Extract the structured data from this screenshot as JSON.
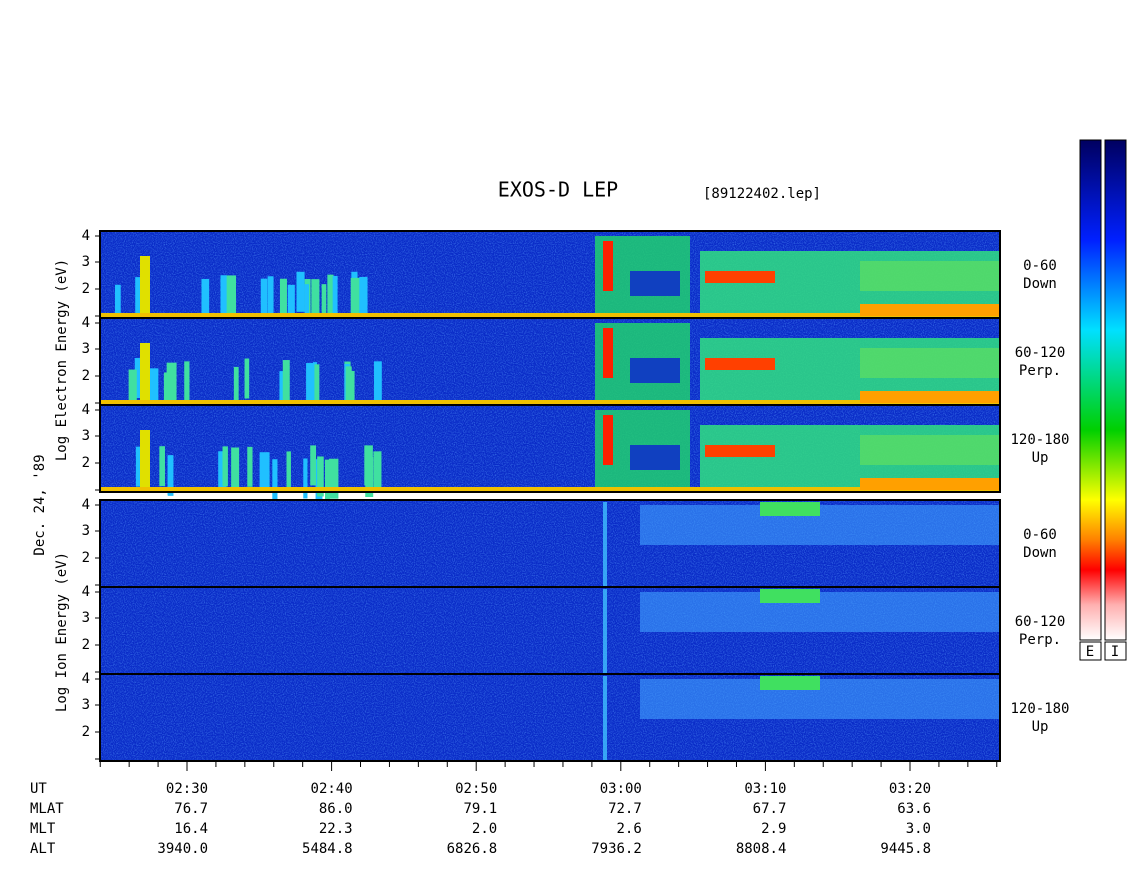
{
  "header": {
    "title": "EXOS-D LEP",
    "file": "[89122402.lep]"
  },
  "axis_labels": {
    "electron": "Log Electron Energy (eV)",
    "date": "Dec. 24, '89",
    "ion": "Log Ion Energy (eV)"
  },
  "y_ticks": [
    "4",
    "3",
    "2"
  ],
  "panels": [
    {
      "range": "0-60",
      "direction": "Down"
    },
    {
      "range": "60-120",
      "direction": "Perp."
    },
    {
      "range": "120-180",
      "direction": "Up"
    },
    {
      "range": "0-60",
      "direction": "Down"
    },
    {
      "range": "60-120",
      "direction": "Perp."
    },
    {
      "range": "120-180",
      "direction": "Up"
    }
  ],
  "colorbar_labels": [
    "E",
    "I"
  ],
  "ephemeris": [
    {
      "label": "UT",
      "values": [
        "02:30",
        "02:40",
        "02:50",
        "03:00",
        "03:10",
        "03:20"
      ]
    },
    {
      "label": "MLAT",
      "values": [
        "76.7",
        "86.0",
        "79.1",
        "72.7",
        "67.7",
        "63.6"
      ]
    },
    {
      "label": "MLT",
      "values": [
        "16.4",
        "22.3",
        "2.0",
        "2.6",
        "2.9",
        "3.0"
      ]
    },
    {
      "label": "ALT",
      "values": [
        "3940.0",
        "5484.8",
        "6826.8",
        "7936.2",
        "8808.4",
        "9445.8"
      ]
    }
  ]
}
